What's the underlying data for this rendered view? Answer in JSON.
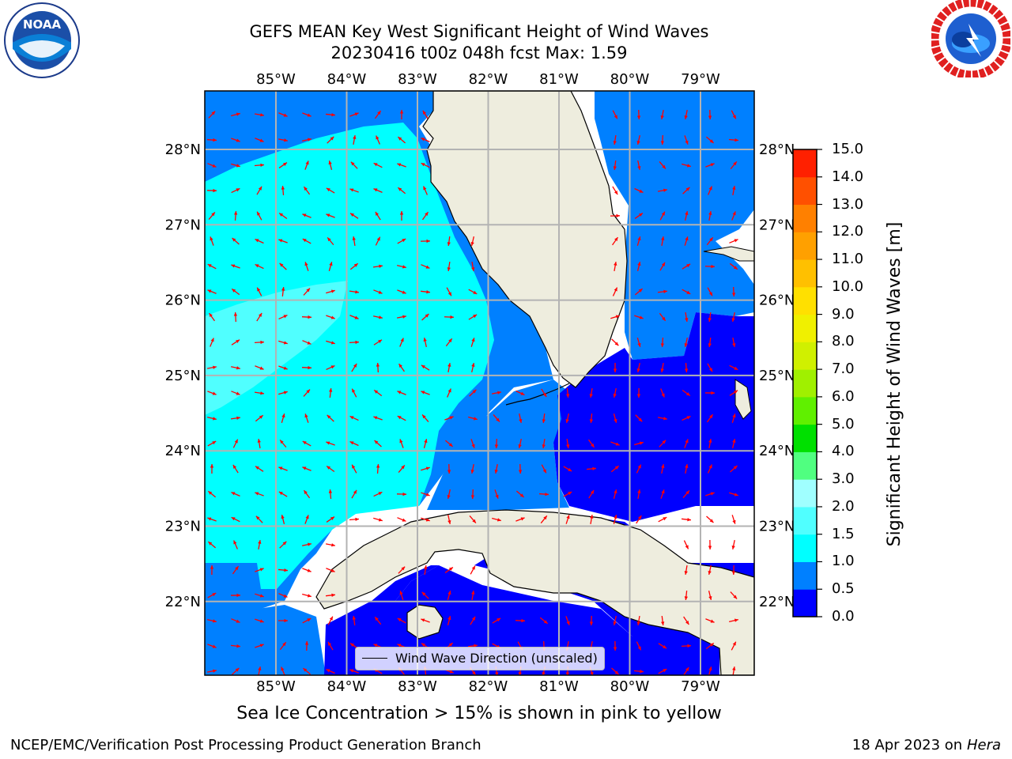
{
  "title": {
    "line1": "GEFS MEAN Key West Significant Height of Wind Waves",
    "line2": "20230416 t00z 048h fcst   Max: 1.59"
  },
  "logos": {
    "noaa_text": "NOAA",
    "noaa_ring_text": "NATIONAL OCEANIC AND ATMOSPHERIC ADMINISTRATION · U.S. DEPARTMENT OF COMMERCE",
    "nws_ring_text": "NATIONAL WEATHER SERVICE"
  },
  "map": {
    "lon_labels": [
      "85°W",
      "84°W",
      "83°W",
      "82°W",
      "81°W",
      "80°W",
      "79°W"
    ],
    "lat_labels": [
      "28°N",
      "27°N",
      "26°N",
      "25°N",
      "24°N",
      "23°N",
      "22°N"
    ],
    "lon_values": [
      -85,
      -84,
      -83,
      -82,
      -81,
      -80,
      -79
    ],
    "lat_values": [
      28,
      27,
      26,
      25,
      24,
      23,
      22
    ],
    "colors": {
      "land": "#eeedde",
      "band_0_0_5": "#0000ff",
      "band_0_5_1_0": "#0080ff",
      "band_1_0_1_5": "#00ffff",
      "band_1_5_2_0": "#50ffff",
      "arrow": "#ff0000",
      "grid": "#b3b3b3"
    },
    "legend_label": "Wind Wave Direction (unscaled)"
  },
  "colorbar": {
    "title": "Significant Height of Wind Waves [m]",
    "tick_labels": [
      "0.0",
      "0.5",
      "1.0",
      "1.5",
      "2.0",
      "3.0",
      "4.0",
      "5.0",
      "6.0",
      "7.0",
      "8.0",
      "9.0",
      "10.0",
      "11.0",
      "12.0",
      "13.0",
      "14.0",
      "15.0"
    ],
    "colors": [
      "#0000ff",
      "#0080ff",
      "#00ffff",
      "#50ffff",
      "#a0ffff",
      "#50ff80",
      "#00e000",
      "#60f000",
      "#a0f000",
      "#d0f000",
      "#f0f000",
      "#ffe000",
      "#ffc000",
      "#ffa000",
      "#ff8000",
      "#ff5000",
      "#ff2000"
    ]
  },
  "caption": "Sea Ice Concentration > 15% is shown in pink to yellow",
  "footer": {
    "left": "NCEP/EMC/Verification Post Processing Product Generation Branch",
    "date": "18 Apr 2023 on",
    "host": "Hera"
  }
}
